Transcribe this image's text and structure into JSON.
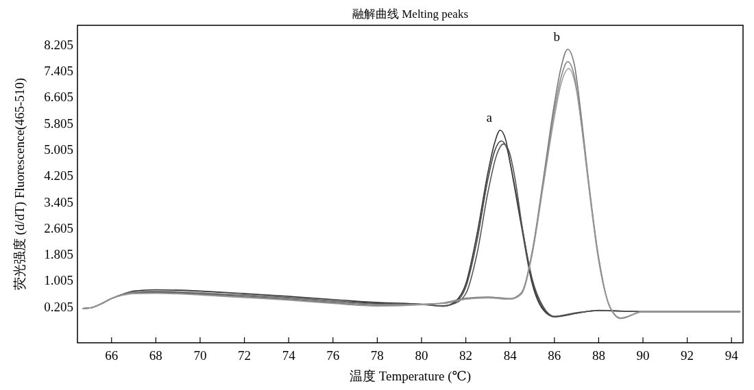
{
  "chart_data": {
    "type": "line",
    "title": "融解曲线 Melting peaks",
    "xlabel": "温度 Temperature (℃)",
    "ylabel": "荧光强度 (d/dT) Fluorescence(465-510)",
    "xlim": [
      64.46,
      94.52
    ],
    "xticks": [
      66,
      68,
      70,
      72,
      74,
      76,
      78,
      80,
      82,
      84,
      86,
      88,
      90,
      92,
      94
    ],
    "ylim": [
      -0.9,
      8.79
    ],
    "yticks": [
      0.205,
      1.005,
      1.805,
      2.605,
      3.405,
      4.205,
      5.005,
      5.805,
      6.605,
      7.405,
      8.205
    ],
    "grid": false,
    "marker": "none",
    "line_style": "solid",
    "annotations": [
      {
        "text": "a",
        "x": 83.55,
        "y": 5.59
      },
      {
        "text": "b",
        "x": 86.6,
        "y": 8.06
      }
    ],
    "series": [
      {
        "color": "#333333",
        "x": [
          64.7,
          65,
          65.5,
          66,
          66.5,
          67,
          68,
          70,
          72,
          74,
          76,
          78,
          80,
          81,
          81.5,
          82,
          82.5,
          83,
          83.3,
          83.55,
          83.8,
          84,
          84.5,
          85,
          85.5,
          86,
          87,
          88,
          90,
          94.4
        ],
        "values": [
          0.15,
          0.16,
          0.28,
          0.45,
          0.58,
          0.68,
          0.72,
          0.68,
          0.6,
          0.52,
          0.42,
          0.33,
          0.28,
          0.22,
          0.35,
          0.9,
          2.4,
          4.3,
          5.2,
          5.59,
          5.3,
          4.6,
          2.7,
          0.9,
          0.1,
          -0.11,
          0.0,
          0.09,
          0.05,
          0.05
        ]
      },
      {
        "color": "#444444",
        "x": [
          64.7,
          65,
          65.5,
          66,
          66.5,
          67,
          68,
          70,
          72,
          74,
          76,
          78,
          80,
          81,
          81.5,
          82,
          82.5,
          83,
          83.3,
          83.6,
          83.85,
          84,
          84.5,
          85,
          85.5,
          86,
          87,
          88,
          90,
          94.4
        ],
        "values": [
          0.15,
          0.16,
          0.28,
          0.45,
          0.57,
          0.64,
          0.66,
          0.62,
          0.56,
          0.48,
          0.38,
          0.3,
          0.27,
          0.22,
          0.32,
          0.8,
          2.2,
          4.1,
          4.95,
          5.26,
          5.05,
          4.6,
          2.8,
          1.0,
          0.15,
          -0.1,
          0.01,
          0.08,
          0.05,
          0.05
        ]
      },
      {
        "color": "#555555",
        "x": [
          64.7,
          65,
          65.5,
          66,
          66.5,
          67,
          68,
          70,
          72,
          74,
          76,
          78,
          80,
          81,
          81.5,
          82,
          82.5,
          83,
          83.4,
          83.7,
          83.95,
          84.2,
          84.6,
          85,
          85.5,
          86,
          87,
          88,
          90,
          94.4
        ],
        "values": [
          0.15,
          0.16,
          0.28,
          0.45,
          0.56,
          0.62,
          0.64,
          0.6,
          0.53,
          0.45,
          0.35,
          0.28,
          0.27,
          0.23,
          0.3,
          0.6,
          1.8,
          3.7,
          4.85,
          5.17,
          4.95,
          4.2,
          2.4,
          1.05,
          0.2,
          -0.09,
          0.02,
          0.08,
          0.05,
          0.05
        ]
      },
      {
        "color": "#777777",
        "x": [
          64.7,
          65,
          65.5,
          66,
          66.5,
          67,
          68,
          70,
          72,
          74,
          76,
          78,
          80,
          81,
          82,
          83,
          84,
          84.5,
          85,
          85.5,
          86,
          86.3,
          86.6,
          86.9,
          87.2,
          87.5,
          88,
          88.5,
          89,
          90,
          94.4
        ],
        "values": [
          0.15,
          0.16,
          0.28,
          0.45,
          0.56,
          0.62,
          0.63,
          0.58,
          0.5,
          0.42,
          0.32,
          0.24,
          0.27,
          0.32,
          0.46,
          0.5,
          0.45,
          0.62,
          1.9,
          4.1,
          6.4,
          7.5,
          8.06,
          7.6,
          6.1,
          4.3,
          1.7,
          0.2,
          -0.16,
          0.05,
          0.05
        ]
      },
      {
        "color": "#888888",
        "x": [
          64.7,
          65,
          65.5,
          66,
          66.5,
          67,
          68,
          70,
          72,
          74,
          76,
          78,
          80,
          81,
          82,
          83,
          84,
          84.5,
          85,
          85.5,
          86,
          86.3,
          86.6,
          86.9,
          87.2,
          87.5,
          88,
          88.5,
          89,
          90,
          94.4
        ],
        "values": [
          0.15,
          0.16,
          0.28,
          0.45,
          0.57,
          0.65,
          0.68,
          0.63,
          0.55,
          0.46,
          0.36,
          0.27,
          0.28,
          0.3,
          0.44,
          0.48,
          0.44,
          0.6,
          1.85,
          4.0,
          6.2,
          7.2,
          7.68,
          7.25,
          5.9,
          4.2,
          1.65,
          0.2,
          -0.15,
          0.05,
          0.05
        ]
      },
      {
        "color": "#999999",
        "x": [
          64.7,
          65,
          65.5,
          66,
          66.5,
          67,
          68,
          70,
          72,
          74,
          76,
          78,
          80,
          81,
          82,
          83,
          84,
          84.5,
          85,
          85.5,
          86,
          86.3,
          86.65,
          87,
          87.3,
          87.6,
          88,
          88.5,
          89,
          90,
          94.4
        ],
        "values": [
          0.15,
          0.16,
          0.28,
          0.45,
          0.55,
          0.6,
          0.61,
          0.56,
          0.48,
          0.4,
          0.3,
          0.22,
          0.26,
          0.31,
          0.43,
          0.47,
          0.43,
          0.58,
          1.8,
          3.9,
          6.0,
          7.0,
          7.47,
          6.8,
          5.3,
          3.6,
          1.6,
          0.22,
          -0.14,
          0.05,
          0.05
        ]
      }
    ]
  }
}
